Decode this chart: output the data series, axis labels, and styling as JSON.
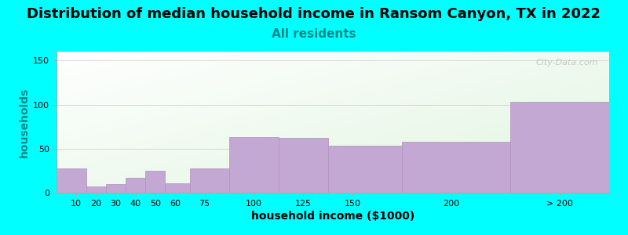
{
  "title": "Distribution of median household income in Ransom Canyon, TX in 2022",
  "subtitle": "All residents",
  "xlabel": "household income ($1000)",
  "ylabel": "households",
  "background_color": "#00FFFF",
  "bar_color": "#c4a8d4",
  "bar_edge_color": "#b090c0",
  "bin_edges": [
    0,
    15,
    25,
    35,
    45,
    55,
    67.5,
    87.5,
    112.5,
    137.5,
    175,
    230,
    280
  ],
  "tick_positions": [
    10,
    20,
    30,
    40,
    50,
    60,
    75,
    100,
    125,
    150,
    200
  ],
  "tick_labels": [
    "10",
    "20",
    "30",
    "40",
    "50",
    "60",
    "75",
    "100",
    "125",
    "150",
    "200"
  ],
  "last_tick_label": "> 200",
  "values": [
    28,
    7,
    10,
    17,
    25,
    11,
    28,
    63,
    62,
    53,
    58,
    103
  ],
  "xlim": [
    0,
    280
  ],
  "ylim": [
    0,
    160
  ],
  "yticks": [
    0,
    50,
    100,
    150
  ],
  "title_fontsize": 13,
  "subtitle_fontsize": 11,
  "axis_label_fontsize": 10,
  "watermark_text": "City-Data.com",
  "title_color": "#000000",
  "subtitle_color": "#008888",
  "ylabel_color": "#008888",
  "xlabel_color": "#000000"
}
